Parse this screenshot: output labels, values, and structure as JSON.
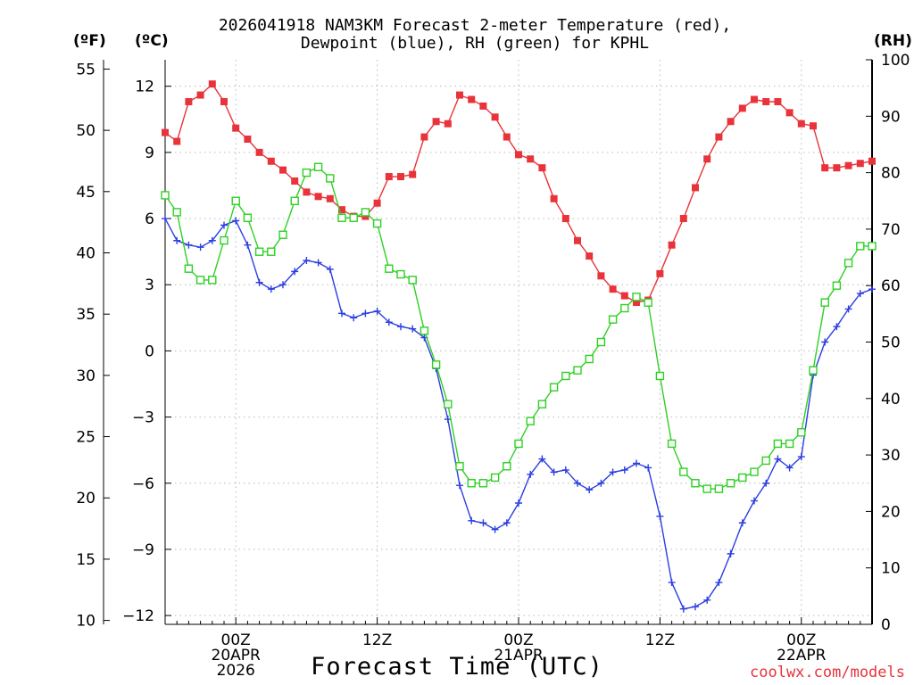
{
  "chart_data": {
    "type": "line",
    "title_line1": "2026041918 NAM3KM Forecast 2-meter Temperature (red),",
    "title_line2": "Dewpoint (blue), RH (green) for KPHL",
    "xlabel": "Forecast Time (UTC)",
    "credit": "coolwx.com/models",
    "unit_labels": {
      "fahrenheit": "(ºF)",
      "celsius": "(ºC)",
      "rh": "(RH)"
    },
    "x_start_hour": 0,
    "x_end_hour": 60,
    "x_ticks": [
      {
        "hour": 6,
        "l1": "00Z",
        "l2": "20APR",
        "l3": "2026"
      },
      {
        "hour": 18,
        "l1": "12Z",
        "l2": "",
        "l3": ""
      },
      {
        "hour": 30,
        "l1": "00Z",
        "l2": "21APR",
        "l3": ""
      },
      {
        "hour": 42,
        "l1": "12Z",
        "l2": "",
        "l3": ""
      },
      {
        "hour": 54,
        "l1": "00Z",
        "l2": "22APR",
        "l3": ""
      }
    ],
    "celsius_axis": {
      "min": -12.4,
      "max": 13.2,
      "ticks": [
        12,
        9,
        6,
        3,
        0,
        -3,
        -6,
        -9,
        -12
      ]
    },
    "fahrenheit_axis": {
      "ticks": [
        55,
        50,
        45,
        40,
        35,
        30,
        25,
        20,
        15,
        10
      ]
    },
    "rh_axis": {
      "min": 0,
      "max": 100,
      "ticks": [
        100,
        90,
        80,
        70,
        60,
        50,
        40,
        30,
        20,
        10,
        0
      ]
    },
    "series": [
      {
        "name": "2-meter Temperature",
        "units": "C",
        "color": "#e8333a",
        "marker": "filled-square",
        "values": [
          9.9,
          9.5,
          11.3,
          11.6,
          12.1,
          11.3,
          10.1,
          9.6,
          9.0,
          8.6,
          8.2,
          7.7,
          7.2,
          7.0,
          6.9,
          6.4,
          6.1,
          6.1,
          6.7,
          7.9,
          7.9,
          8.0,
          9.7,
          10.4,
          10.3,
          11.6,
          11.4,
          11.1,
          10.6,
          9.7,
          8.9,
          8.7,
          8.3,
          6.9,
          6.0,
          5.0,
          4.3,
          3.4,
          2.8,
          2.5,
          2.2,
          2.3,
          3.5,
          4.8,
          6.0,
          7.4,
          8.7,
          9.7,
          10.4,
          11.0,
          11.4,
          11.3,
          11.3,
          10.8,
          10.3,
          10.2,
          8.3,
          8.3,
          8.4,
          8.5,
          8.6
        ]
      },
      {
        "name": "Dewpoint",
        "units": "C",
        "color": "#2b3ee0",
        "marker": "plus",
        "values": [
          6.0,
          5.0,
          4.8,
          4.7,
          5.0,
          5.7,
          5.9,
          4.8,
          3.1,
          2.8,
          3.0,
          3.6,
          4.1,
          4.0,
          3.7,
          1.7,
          1.5,
          1.7,
          1.8,
          1.3,
          1.1,
          1.0,
          0.6,
          -0.8,
          -3.1,
          -6.1,
          -7.7,
          -7.8,
          -8.1,
          -7.8,
          -6.9,
          -5.6,
          -4.9,
          -5.5,
          -5.4,
          -6.0,
          -6.3,
          -6.0,
          -5.5,
          -5.4,
          -5.1,
          -5.3,
          -7.5,
          -10.5,
          -11.7,
          -11.6,
          -11.3,
          -10.5,
          -9.2,
          -7.8,
          -6.8,
          -6.0,
          -4.9,
          -5.3,
          -4.8,
          -1.1,
          0.4,
          1.1,
          1.9,
          2.6,
          2.8
        ]
      },
      {
        "name": "Relative Humidity",
        "units": "%",
        "color": "#2fd024",
        "marker": "open-square",
        "values": [
          76,
          73,
          63,
          61,
          61,
          68,
          75,
          72,
          66,
          66,
          69,
          75,
          80,
          81,
          79,
          72,
          72,
          73,
          71,
          63,
          62,
          61,
          52,
          46,
          39,
          28,
          25,
          25,
          26,
          28,
          32,
          36,
          39,
          42,
          44,
          45,
          47,
          50,
          54,
          56,
          58,
          57,
          44,
          32,
          27,
          25,
          24,
          24,
          25,
          26,
          27,
          29,
          32,
          32,
          34,
          45,
          57,
          60,
          64,
          67,
          67
        ]
      }
    ]
  }
}
